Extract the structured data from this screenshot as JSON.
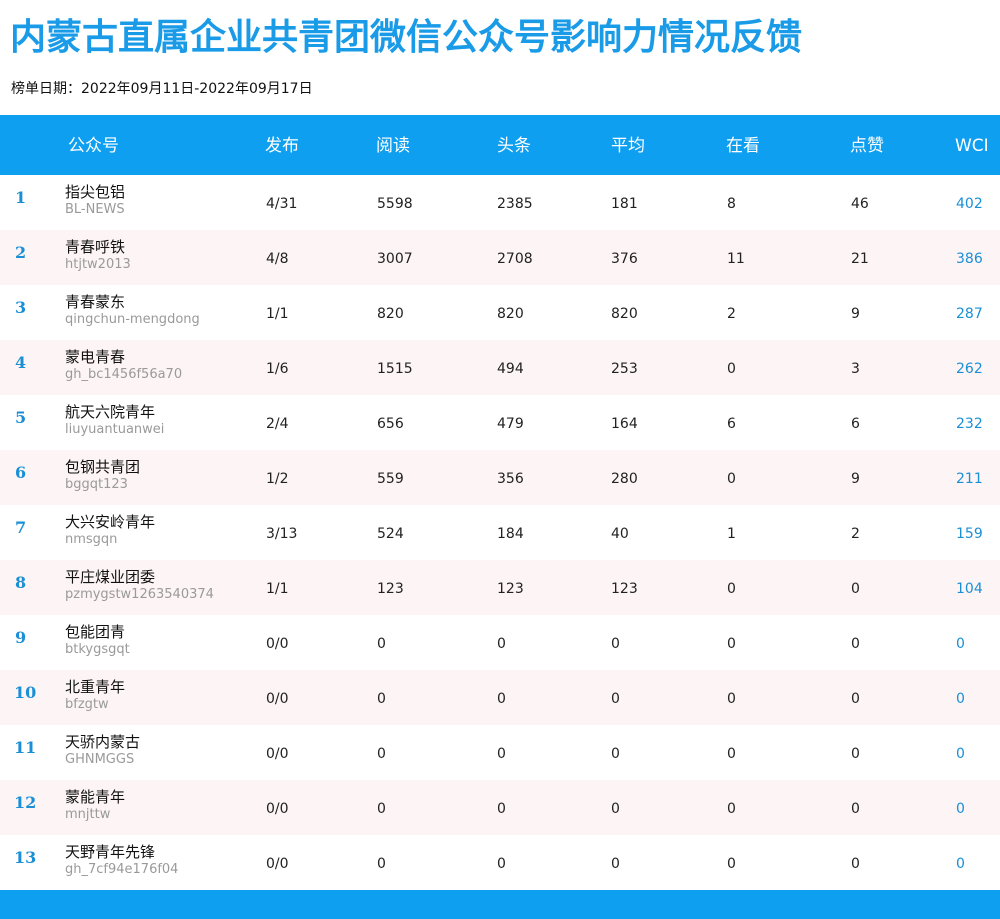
{
  "title": "内蒙古直属企业共青团微信公众号影响力情况反馈",
  "date_range": "榜单日期：2022年09月11日-2022年09月17日",
  "colors": {
    "accent": "#0e9ff0",
    "title": "#1a9be8",
    "rank": "#1a8fd6",
    "row_alt": "#fdf5f5"
  },
  "columns": {
    "account": "公众号",
    "publish": "发布",
    "reads": "阅读",
    "headline": "头条",
    "average": "平均",
    "watching": "在看",
    "likes": "点赞",
    "wci": "WCI"
  },
  "rows": [
    {
      "rank": "1",
      "name": "指尖包铝",
      "id": "BL-NEWS",
      "publish": "4/31",
      "reads": "5598",
      "headline": "2385",
      "average": "181",
      "watching": "8",
      "likes": "46",
      "wci": "402"
    },
    {
      "rank": "2",
      "name": "青春呼铁",
      "id": "htjtw2013",
      "publish": "4/8",
      "reads": "3007",
      "headline": "2708",
      "average": "376",
      "watching": "11",
      "likes": "21",
      "wci": "386"
    },
    {
      "rank": "3",
      "name": "青春蒙东",
      "id": "qingchun-mengdong",
      "publish": "1/1",
      "reads": "820",
      "headline": "820",
      "average": "820",
      "watching": "2",
      "likes": "9",
      "wci": "287"
    },
    {
      "rank": "4",
      "name": "蒙电青春",
      "id": "gh_bc1456f56a70",
      "publish": "1/6",
      "reads": "1515",
      "headline": "494",
      "average": "253",
      "watching": "0",
      "likes": "3",
      "wci": "262"
    },
    {
      "rank": "5",
      "name": "航天六院青年",
      "id": "liuyuantuanwei",
      "publish": "2/4",
      "reads": "656",
      "headline": "479",
      "average": "164",
      "watching": "6",
      "likes": "6",
      "wci": "232"
    },
    {
      "rank": "6",
      "name": "包钢共青团",
      "id": "bggqt123",
      "publish": "1/2",
      "reads": "559",
      "headline": "356",
      "average": "280",
      "watching": "0",
      "likes": "9",
      "wci": "211"
    },
    {
      "rank": "7",
      "name": "大兴安岭青年",
      "id": "nmsgqn",
      "publish": "3/13",
      "reads": "524",
      "headline": "184",
      "average": "40",
      "watching": "1",
      "likes": "2",
      "wci": "159"
    },
    {
      "rank": "8",
      "name": "平庄煤业团委",
      "id": "pzmygstw1263540374",
      "publish": "1/1",
      "reads": "123",
      "headline": "123",
      "average": "123",
      "watching": "0",
      "likes": "0",
      "wci": "104"
    },
    {
      "rank": "9",
      "name": "包能团青",
      "id": "btkygsgqt",
      "publish": "0/0",
      "reads": "0",
      "headline": "0",
      "average": "0",
      "watching": "0",
      "likes": "0",
      "wci": "0"
    },
    {
      "rank": "10",
      "name": "北重青年",
      "id": "bfzgtw",
      "publish": "0/0",
      "reads": "0",
      "headline": "0",
      "average": "0",
      "watching": "0",
      "likes": "0",
      "wci": "0"
    },
    {
      "rank": "11",
      "name": "天骄内蒙古",
      "id": "GHNMGGS",
      "publish": "0/0",
      "reads": "0",
      "headline": "0",
      "average": "0",
      "watching": "0",
      "likes": "0",
      "wci": "0"
    },
    {
      "rank": "12",
      "name": "蒙能青年",
      "id": "mnjttw",
      "publish": "0/0",
      "reads": "0",
      "headline": "0",
      "average": "0",
      "watching": "0",
      "likes": "0",
      "wci": "0"
    },
    {
      "rank": "13",
      "name": "天野青年先锋",
      "id": "gh_7cf94e176f04",
      "publish": "0/0",
      "reads": "0",
      "headline": "0",
      "average": "0",
      "watching": "0",
      "likes": "0",
      "wci": "0"
    }
  ]
}
